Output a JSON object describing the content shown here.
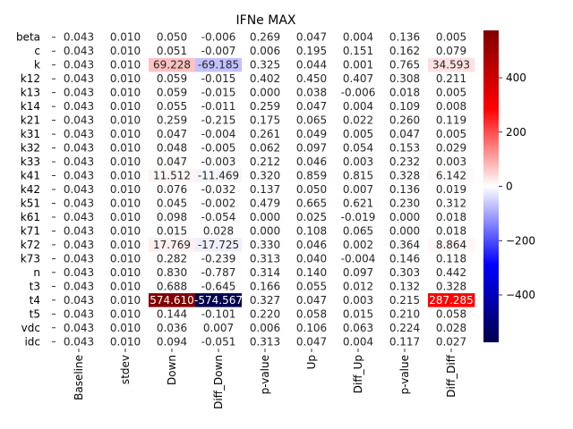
{
  "chart_data": {
    "type": "heatmap",
    "title": "IFNe MAX",
    "rows": [
      "beta",
      "c",
      "k",
      "k12",
      "k13",
      "k14",
      "k21",
      "k31",
      "k32",
      "k33",
      "k41",
      "k42",
      "k51",
      "k61",
      "k71",
      "k72",
      "k73",
      "n",
      "t3",
      "t4",
      "t5",
      "vdc",
      "idc"
    ],
    "columns": [
      "Baseline",
      "stdev",
      "Down",
      "Diff_Down",
      "p-value",
      "Up",
      "Diff_Up",
      "p-value",
      "Diff_Diff"
    ],
    "values": [
      [
        0.043,
        0.01,
        0.05,
        -0.006,
        0.269,
        0.047,
        0.004,
        0.136,
        0.005
      ],
      [
        0.043,
        0.01,
        0.051,
        -0.007,
        0.006,
        0.195,
        0.151,
        0.162,
        0.079
      ],
      [
        0.043,
        0.01,
        69.228,
        -69.185,
        0.325,
        0.044,
        0.001,
        0.765,
        34.593
      ],
      [
        0.043,
        0.01,
        0.059,
        -0.015,
        0.402,
        0.45,
        0.407,
        0.308,
        0.211
      ],
      [
        0.043,
        0.01,
        0.059,
        -0.015,
        0.0,
        0.038,
        -0.006,
        0.018,
        0.005
      ],
      [
        0.043,
        0.01,
        0.055,
        -0.011,
        0.259,
        0.047,
        0.004,
        0.109,
        0.008
      ],
      [
        0.043,
        0.01,
        0.259,
        -0.215,
        0.175,
        0.065,
        0.022,
        0.26,
        0.119
      ],
      [
        0.043,
        0.01,
        0.047,
        -0.004,
        0.261,
        0.049,
        0.005,
        0.047,
        0.005
      ],
      [
        0.043,
        0.01,
        0.048,
        -0.005,
        0.062,
        0.097,
        0.054,
        0.153,
        0.029
      ],
      [
        0.043,
        0.01,
        0.047,
        -0.003,
        0.212,
        0.046,
        0.003,
        0.232,
        0.003
      ],
      [
        0.043,
        0.01,
        11.512,
        -11.469,
        0.32,
        0.859,
        0.815,
        0.328,
        6.142
      ],
      [
        0.043,
        0.01,
        0.076,
        -0.032,
        0.137,
        0.05,
        0.007,
        0.136,
        0.019
      ],
      [
        0.043,
        0.01,
        0.045,
        -0.002,
        0.479,
        0.665,
        0.621,
        0.23,
        0.312
      ],
      [
        0.043,
        0.01,
        0.098,
        -0.054,
        0.0,
        0.025,
        -0.019,
        0.0,
        0.018
      ],
      [
        0.043,
        0.01,
        0.015,
        0.028,
        0.0,
        0.108,
        0.065,
        0.0,
        0.018
      ],
      [
        0.043,
        0.01,
        17.769,
        -17.725,
        0.33,
        0.046,
        0.002,
        0.364,
        8.864
      ],
      [
        0.043,
        0.01,
        0.282,
        -0.239,
        0.313,
        0.04,
        -0.004,
        0.146,
        0.118
      ],
      [
        0.043,
        0.01,
        0.83,
        -0.787,
        0.314,
        0.14,
        0.097,
        0.303,
        0.442
      ],
      [
        0.043,
        0.01,
        0.688,
        -0.645,
        0.166,
        0.055,
        0.012,
        0.132,
        0.328
      ],
      [
        0.043,
        0.01,
        574.61,
        -574.567,
        0.327,
        0.047,
        0.003,
        0.215,
        287.285
      ],
      [
        0.043,
        0.01,
        0.144,
        -0.101,
        0.22,
        0.058,
        0.015,
        0.21,
        0.058
      ],
      [
        0.043,
        0.01,
        0.036,
        0.007,
        0.006,
        0.106,
        0.063,
        0.224,
        0.028
      ],
      [
        0.043,
        0.01,
        0.094,
        -0.051,
        0.313,
        0.047,
        0.004,
        0.117,
        0.027
      ]
    ],
    "colormap": "seismic",
    "vmin": -574.567,
    "vmax": 574.61,
    "colorbar_ticks": [
      400,
      200,
      0,
      -200,
      -400
    ],
    "colorbar_tick_labels": [
      "400",
      "200",
      "0",
      "−200",
      "−400"
    ],
    "annotation_format": "%.3f"
  }
}
